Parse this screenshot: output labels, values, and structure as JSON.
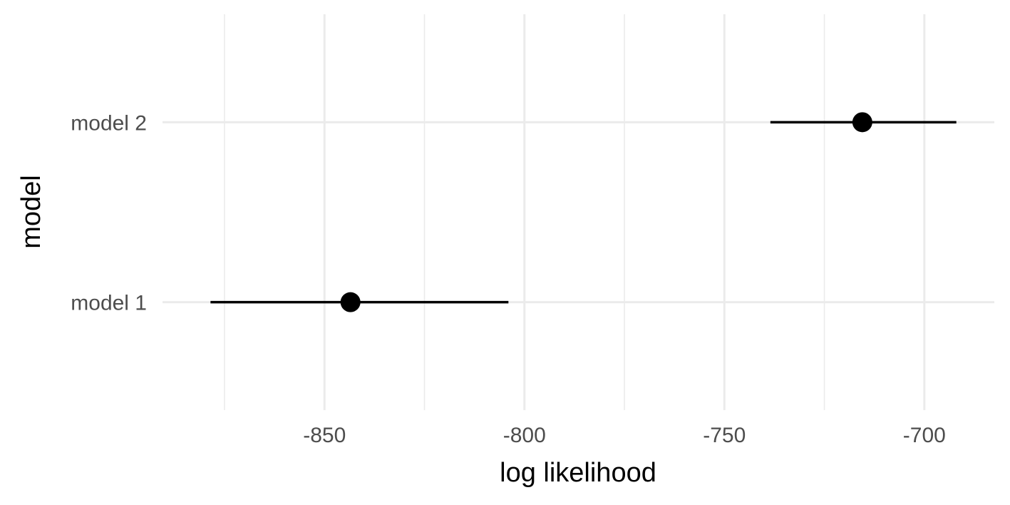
{
  "chart_data": {
    "type": "scatter",
    "xlabel": "log likelihood",
    "ylabel": "model",
    "xlim": [
      -890.5,
      -682.5
    ],
    "x_ticks": [
      -850,
      -800,
      -750,
      -700
    ],
    "x_tick_labels": [
      "-850",
      "-800",
      "-750",
      "-700"
    ],
    "x_minor_ticks": [
      -875,
      -825,
      -775,
      -725
    ],
    "categories": [
      "model 1",
      "model 2"
    ],
    "points": [
      {
        "category": "model 1",
        "estimate": -843.5,
        "lower": -878.5,
        "upper": -804.0
      },
      {
        "category": "model 2",
        "estimate": -715.5,
        "lower": -738.5,
        "upper": -692.0
      }
    ],
    "grid": true,
    "legend": "none"
  }
}
